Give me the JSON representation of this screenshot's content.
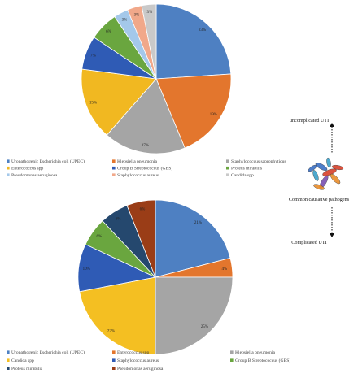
{
  "chart_data": [
    {
      "type": "pie",
      "title": "",
      "categories": [
        "Uropathogenic Escherichia coli (UPEC)",
        "Klebsiella pneumonia",
        "Staphylococcus saprophyticus",
        "Enterococcus spp",
        "Group B Streptococcus (GBS)",
        "Proteus mirabilis",
        "Pseudomonas aeruginosa",
        "Staphylococcus aureus",
        "Candida spp"
      ],
      "values": [
        23,
        19,
        17,
        15,
        7,
        6,
        3,
        3,
        3
      ],
      "labels": [
        "23%",
        "19%",
        "17%",
        "15%",
        "7%",
        "6%",
        "3%",
        "3%",
        "3%"
      ],
      "colors": [
        "#4e80c2",
        "#e3762d",
        "#a5a5a5",
        "#f1b821",
        "#2f5bb5",
        "#6aa63f",
        "#a4c8ea",
        "#f1a88a",
        "#c9c9c9"
      ],
      "legend_placement": "bottom",
      "legend_columns": 3
    },
    {
      "type": "pie",
      "title": "",
      "categories": [
        "Uropathogenic Escherichia coli (UPEC)",
        "Enterococcus spp",
        "Klebsiella pneumonia",
        "Candida spp",
        "Staphylococcus aureus",
        "Group B Streptococcus (GBS)",
        "Proteus mirabilis",
        "Pseudomonas aeruginosa"
      ],
      "values": [
        21,
        4,
        25,
        22,
        10,
        6,
        6,
        6
      ],
      "labels": [
        "21%",
        "4%",
        "25%",
        "22%",
        "10%",
        "6%",
        "6%",
        "6%"
      ],
      "colors": [
        "#4e80c2",
        "#e3762d",
        "#a5a5a5",
        "#f4bf22",
        "#2f5bb5",
        "#6aa63f",
        "#25486e",
        "#9a3d17"
      ],
      "legend_placement": "bottom",
      "legend_columns": 3
    }
  ],
  "side_panel": {
    "top_label": "uncomplicated UTI",
    "middle_label": "Common causative pathogens",
    "bottom_label": "Complicated UTI",
    "bacteria_icon": "bacteria-cluster-icon",
    "bacteria_colors": [
      "#3a6fc4",
      "#d8402a",
      "#3aa0c9",
      "#e88c2a",
      "#7a4fb0"
    ]
  }
}
